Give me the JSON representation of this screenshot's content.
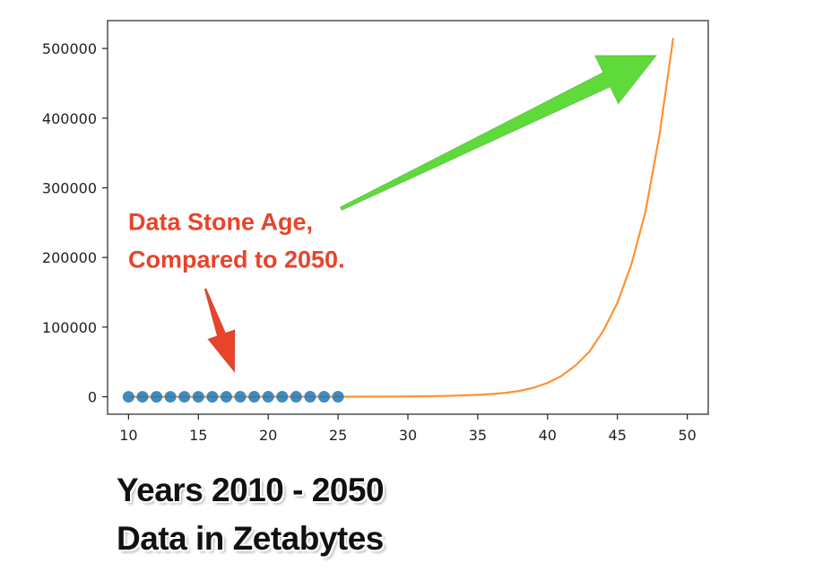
{
  "chart_data": {
    "type": "line",
    "xlim": [
      8.5,
      51.5
    ],
    "ylim": [
      -25000,
      540000
    ],
    "x_ticks": [
      10,
      15,
      20,
      25,
      30,
      35,
      40,
      45,
      50
    ],
    "y_ticks": [
      0,
      100000,
      200000,
      300000,
      400000,
      500000
    ],
    "x_tick_labels": [
      "10",
      "15",
      "20",
      "25",
      "30",
      "35",
      "40",
      "45",
      "50"
    ],
    "y_tick_labels": [
      "0",
      "100000",
      "200000",
      "300000",
      "400000",
      "500000"
    ],
    "grid": false,
    "series": [
      {
        "style": "markers",
        "color": "#1f77b4",
        "x": [
          10,
          11,
          12,
          13,
          14,
          15,
          16,
          17,
          18,
          19,
          20,
          21,
          22,
          23,
          24,
          25
        ],
        "values": [
          1,
          2,
          4,
          5,
          7,
          9,
          12,
          16,
          20,
          26,
          33,
          42,
          53,
          66,
          82,
          100
        ]
      },
      {
        "style": "line",
        "color": "#ff7f0e",
        "x": [
          10,
          11,
          12,
          13,
          14,
          15,
          16,
          17,
          18,
          19,
          20,
          21,
          22,
          23,
          24,
          25,
          26,
          27,
          28,
          29,
          30,
          31,
          32,
          33,
          34,
          35,
          36,
          37,
          38,
          39,
          40,
          41,
          42,
          43,
          44,
          45,
          46,
          47,
          48,
          49
        ],
        "values": [
          1,
          2,
          4,
          5,
          7,
          9,
          12,
          16,
          20,
          26,
          33,
          42,
          53,
          66,
          82,
          100,
          130,
          180,
          250,
          350,
          500,
          700,
          1000,
          1400,
          2000,
          2800,
          4000,
          5800,
          8500,
          13000,
          20000,
          30000,
          45000,
          65000,
          95000,
          135000,
          190000,
          265000,
          375000,
          515000
        ]
      }
    ],
    "annotations": [
      {
        "text_lines": [
          "Data Stone Age,",
          "Compared to 2050."
        ],
        "color": "#e8442a"
      }
    ],
    "arrows": [
      {
        "color": "#5edb3a",
        "from": [
          25.2,
          270000
        ],
        "to": [
          47.8,
          490000
        ]
      },
      {
        "color": "#e8442a",
        "from": [
          15.5,
          155000
        ],
        "to": [
          17.6,
          35000
        ]
      }
    ]
  },
  "caption": {
    "line1": "Years 2010 - 2050",
    "line2": "Data in Zetabytes"
  }
}
